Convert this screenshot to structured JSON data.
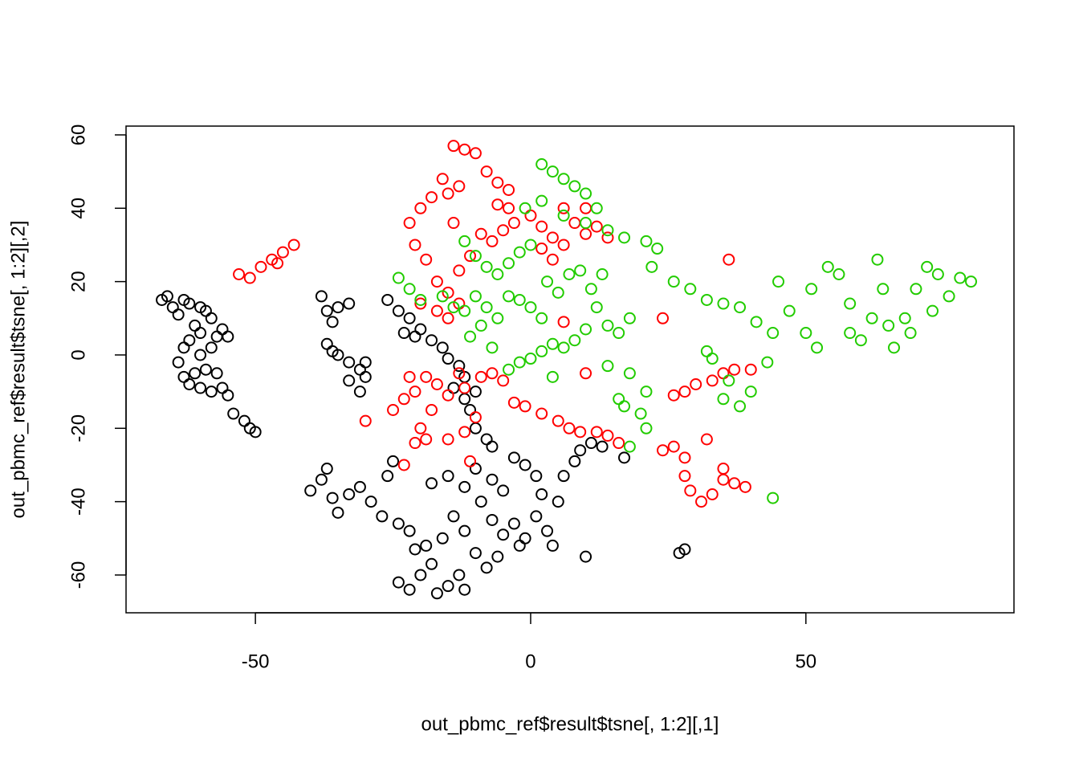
{
  "chart_data": {
    "type": "scatter",
    "x_label": "out_pbmc_ref$result$tsne[, 1:2][,1]",
    "y_label": "out_pbmc_ref$result$tsne[, 1:2][,2]",
    "xlim": [
      -73.5,
      87.8
    ],
    "ylim": [
      -70.3,
      62.4
    ],
    "xticks": [
      -50,
      0,
      50
    ],
    "yticks": [
      -60,
      -40,
      -20,
      0,
      20,
      40,
      60
    ],
    "series": [
      {
        "color": "#000000",
        "x": [
          -67,
          -66,
          -65,
          -64,
          -63,
          -62,
          -61,
          -60,
          -62,
          -63,
          -64,
          -63,
          -62,
          -60,
          -58,
          -56,
          -55,
          -57,
          -59,
          -60,
          -58,
          -57,
          -56,
          -58,
          -59,
          -60,
          -54,
          -52,
          -51,
          -50,
          -55,
          -61,
          -38,
          -37,
          -36,
          -35,
          -33,
          -37,
          -36,
          -35,
          -33,
          -31,
          -30,
          -31,
          -30,
          -33,
          -26,
          -24,
          -22,
          -20,
          -23,
          -21,
          -18,
          -16,
          -15,
          -13,
          -12,
          -10,
          -11,
          -10,
          -8,
          -7,
          -12,
          -14,
          -40,
          -38,
          -37,
          -36,
          -35,
          -33,
          -31,
          -29,
          -27,
          -26,
          -25,
          -24,
          -22,
          -21,
          -24,
          -22,
          -20,
          -18,
          -16,
          -14,
          -12,
          -10,
          -8,
          -6,
          -5,
          -7,
          -9,
          -12,
          -15,
          -18,
          -10,
          -7,
          -5,
          -13,
          -12,
          -15,
          -17,
          -19,
          -3,
          -1,
          1,
          2,
          1,
          -1,
          -2,
          3,
          4,
          5,
          6,
          8,
          9,
          11,
          13,
          17,
          -3,
          10,
          28,
          27
        ],
        "y": [
          15,
          16,
          13,
          11,
          15,
          14,
          8,
          6,
          4,
          2,
          -2,
          -6,
          -8,
          -9,
          -10,
          -9,
          -11,
          -5,
          -4,
          0,
          2,
          5,
          7,
          10,
          12,
          13,
          -16,
          -18,
          -20,
          -21,
          5,
          -5,
          16,
          12,
          9,
          13,
          14,
          3,
          1,
          0,
          -2,
          -4,
          -6,
          -10,
          -2,
          -7,
          15,
          12,
          10,
          7,
          6,
          5,
          4,
          2,
          -1,
          -3,
          -6,
          -10,
          -15,
          -20,
          -23,
          -25,
          -12,
          -9,
          -37,
          -34,
          -31,
          -39,
          -43,
          -38,
          -36,
          -40,
          -44,
          -33,
          -29,
          -46,
          -48,
          -53,
          -62,
          -64,
          -60,
          -57,
          -50,
          -44,
          -48,
          -54,
          -58,
          -55,
          -49,
          -45,
          -40,
          -36,
          -33,
          -35,
          -31,
          -34,
          -37,
          -60,
          -64,
          -63,
          -65,
          -52,
          -28,
          -30,
          -33,
          -38,
          -44,
          -50,
          -52,
          -48,
          -52,
          -40,
          -33,
          -29,
          -26,
          -24,
          -25,
          -28,
          -46,
          -55,
          -53,
          -54
        ]
      },
      {
        "color": "#ff0000",
        "x": [
          -53,
          -51,
          -49,
          -47,
          -45,
          -43,
          -46,
          -14,
          -12,
          -10,
          -8,
          -6,
          -4,
          -16,
          -18,
          -20,
          -22,
          -21,
          -19,
          -17,
          -20,
          -17,
          -15,
          -13,
          -15,
          -11,
          -9,
          -7,
          -5,
          -3,
          -6,
          -4,
          0,
          2,
          4,
          6,
          4,
          8,
          10,
          12,
          14,
          6,
          10,
          2,
          -13,
          -15,
          -13,
          -14,
          -30,
          -25,
          -23,
          -21,
          -22,
          -19,
          -17,
          -15,
          -18,
          -20,
          -21,
          -23,
          -19,
          -15,
          -12,
          -10,
          -12,
          -13,
          -9,
          -7,
          -5,
          -3,
          -1,
          2,
          5,
          7,
          9,
          12,
          14,
          16,
          10,
          6,
          24,
          24,
          26,
          28,
          28,
          29,
          31,
          33,
          35,
          37,
          39,
          35,
          32,
          26,
          28,
          30,
          33,
          35,
          37,
          40,
          36,
          -11
        ],
        "y": [
          22,
          21,
          24,
          26,
          28,
          30,
          25,
          57,
          56,
          55,
          50,
          47,
          45,
          48,
          43,
          40,
          36,
          30,
          26,
          20,
          14,
          12,
          10,
          14,
          17,
          27,
          33,
          31,
          34,
          36,
          41,
          40,
          38,
          35,
          32,
          30,
          26,
          36,
          33,
          35,
          32,
          40,
          40,
          29,
          23,
          44,
          46,
          36,
          -18,
          -15,
          -12,
          -10,
          -6,
          -6,
          -8,
          -11,
          -15,
          -20,
          -24,
          -30,
          -23,
          -23,
          -21,
          -17,
          -9,
          -5,
          -6,
          -5,
          -7,
          -13,
          -14,
          -16,
          -18,
          -20,
          -21,
          -21,
          -22,
          -24,
          -5,
          9,
          10,
          -26,
          -25,
          -28,
          -33,
          -37,
          -40,
          -38,
          -34,
          -35,
          -36,
          -31,
          -23,
          -11,
          -10,
          -8,
          -7,
          -5,
          -4,
          -4,
          26,
          -29
        ]
      },
      {
        "color": "#22cc00",
        "x": [
          2,
          4,
          6,
          8,
          10,
          12,
          -12,
          -10,
          -8,
          -6,
          -4,
          -2,
          0,
          -24,
          -22,
          -20,
          -16,
          -14,
          -12,
          -10,
          -8,
          -6,
          -4,
          -2,
          0,
          2,
          3,
          5,
          7,
          9,
          11,
          13,
          12,
          10,
          8,
          6,
          4,
          2,
          0,
          -2,
          -4,
          -7,
          -9,
          -11,
          4,
          14,
          16,
          18,
          14,
          18,
          21,
          17,
          20,
          21,
          18,
          16,
          6,
          10,
          14,
          17,
          21,
          23,
          22,
          26,
          29,
          32,
          35,
          32,
          33,
          36,
          35,
          38,
          40,
          38,
          41,
          44,
          43,
          45,
          47,
          50,
          52,
          51,
          54,
          56,
          58,
          58,
          60,
          62,
          63,
          64,
          65,
          66,
          68,
          70,
          72,
          74,
          76,
          78,
          80,
          73,
          69,
          44,
          -1,
          2
        ],
        "y": [
          52,
          50,
          48,
          46,
          44,
          40,
          31,
          27,
          24,
          22,
          25,
          28,
          30,
          21,
          18,
          15,
          16,
          13,
          12,
          16,
          13,
          10,
          16,
          15,
          13,
          10,
          20,
          17,
          22,
          23,
          18,
          22,
          13,
          7,
          4,
          2,
          3,
          1,
          -1,
          -2,
          -4,
          2,
          8,
          5,
          -6,
          8,
          6,
          10,
          -3,
          -5,
          -10,
          -14,
          -16,
          -20,
          -25,
          -12,
          38,
          36,
          34,
          32,
          31,
          29,
          24,
          20,
          18,
          15,
          14,
          1,
          -1,
          -7,
          -12,
          -14,
          -10,
          13,
          9,
          6,
          -2,
          20,
          12,
          6,
          2,
          18,
          24,
          22,
          14,
          6,
          4,
          10,
          26,
          18,
          8,
          2,
          10,
          18,
          24,
          22,
          16,
          21,
          20,
          12,
          6,
          -39,
          40,
          42
        ]
      }
    ]
  }
}
